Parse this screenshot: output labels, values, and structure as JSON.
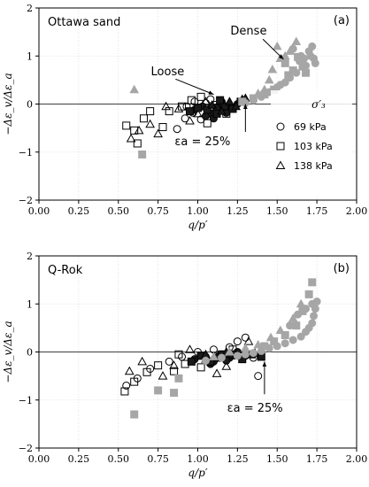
{
  "chart_data": [
    {
      "type": "scatter",
      "panel_tag": "(a)",
      "material": "Ottawa sand",
      "xlabel": "q/p′",
      "ylabel": "−Δε_v/Δε_a",
      "xlim": [
        0,
        2
      ],
      "ylim": [
        -2,
        2
      ],
      "xticks": [
        "0.00",
        "0.25",
        "0.50",
        "0.75",
        "1.00",
        "1.25",
        "1.50",
        "1.75",
        "2.00"
      ],
      "yticks": [
        "−2",
        "−1",
        "0",
        "1",
        "2"
      ],
      "grid": true,
      "legend": {
        "placement": "right",
        "title": "σ′₃",
        "entries": [
          {
            "marker": "circle",
            "label": "69 kPa"
          },
          {
            "marker": "square",
            "label": "103 kPa"
          },
          {
            "marker": "triangle",
            "label": "138 kPa"
          }
        ]
      },
      "annotations": [
        {
          "text": "Dense",
          "points_to": [
            1.54,
            0.93
          ]
        },
        {
          "text": "Loose",
          "points_to": [
            1.1,
            0.2
          ]
        },
        {
          "text": "εa = 25%",
          "points_to": [
            1.3,
            0.0
          ]
        }
      ],
      "series": [
        {
          "marker": "circle",
          "fill": "hollow",
          "points": [
            [
              0.93,
              -0.05
            ],
            [
              0.97,
              -0.18
            ],
            [
              1.02,
              -0.32
            ],
            [
              1.05,
              0.02
            ],
            [
              1.1,
              -0.25
            ],
            [
              0.98,
              0.05
            ],
            [
              1.13,
              -0.1
            ],
            [
              0.87,
              -0.52
            ],
            [
              0.92,
              -0.3
            ],
            [
              1.08,
              0.1
            ],
            [
              1.15,
              0.05
            ]
          ]
        },
        {
          "marker": "square",
          "fill": "hollow",
          "points": [
            [
              0.55,
              -0.45
            ],
            [
              0.6,
              -0.55
            ],
            [
              0.62,
              -0.82
            ],
            [
              0.66,
              -0.3
            ],
            [
              0.7,
              -0.15
            ],
            [
              0.78,
              -0.48
            ],
            [
              0.82,
              -0.15
            ],
            [
              0.9,
              -0.05
            ],
            [
              1.02,
              0.15
            ],
            [
              1.06,
              -0.4
            ],
            [
              1.12,
              -0.02
            ],
            [
              1.18,
              -0.2
            ],
            [
              0.96,
              0.08
            ]
          ]
        },
        {
          "marker": "triangle",
          "fill": "hollow",
          "points": [
            [
              0.58,
              -0.72
            ],
            [
              0.63,
              -0.55
            ],
            [
              0.7,
              -0.42
            ],
            [
              0.75,
              -0.62
            ],
            [
              0.8,
              -0.05
            ],
            [
              0.88,
              -0.1
            ],
            [
              0.95,
              -0.35
            ],
            [
              1.0,
              -0.2
            ],
            [
              1.05,
              0.05
            ],
            [
              1.1,
              -0.15
            ]
          ]
        },
        {
          "marker": "circle",
          "fill": "dark",
          "points": [
            [
              0.98,
              -0.12
            ],
            [
              1.03,
              -0.05
            ],
            [
              1.08,
              -0.2
            ],
            [
              1.12,
              -0.08
            ],
            [
              1.15,
              0.02
            ],
            [
              1.2,
              -0.1
            ],
            [
              1.25,
              0.0
            ],
            [
              1.05,
              -0.25
            ],
            [
              1.1,
              -0.3
            ],
            [
              1.18,
              -0.18
            ]
          ]
        },
        {
          "marker": "square",
          "fill": "dark",
          "points": [
            [
              1.0,
              -0.08
            ],
            [
              1.06,
              -0.12
            ],
            [
              1.12,
              -0.2
            ],
            [
              1.17,
              -0.05
            ],
            [
              1.22,
              -0.1
            ],
            [
              1.27,
              0.05
            ],
            [
              0.95,
              -0.15
            ],
            [
              1.14,
              0.08
            ]
          ]
        },
        {
          "marker": "triangle",
          "fill": "dark",
          "points": [
            [
              1.15,
              -0.15
            ],
            [
              1.2,
              0.05
            ],
            [
              1.24,
              -0.05
            ],
            [
              1.28,
              0.1
            ],
            [
              1.3,
              0.12
            ],
            [
              1.09,
              -0.02
            ]
          ]
        },
        {
          "marker": "circle",
          "fill": "gray",
          "points": [
            [
              1.6,
              1.15
            ],
            [
              1.65,
              1.0
            ],
            [
              1.7,
              1.1
            ],
            [
              1.72,
              1.2
            ],
            [
              1.73,
              0.95
            ],
            [
              1.68,
              0.8
            ],
            [
              1.62,
              0.65
            ],
            [
              1.55,
              0.45
            ],
            [
              1.5,
              0.35
            ],
            [
              1.45,
              0.25
            ],
            [
              1.4,
              0.15
            ],
            [
              1.35,
              0.08
            ],
            [
              1.3,
              0.02
            ],
            [
              1.67,
              0.95
            ],
            [
              1.74,
              0.85
            ],
            [
              1.58,
              0.55
            ],
            [
              1.52,
              0.4
            ],
            [
              1.64,
              0.9
            ],
            [
              1.71,
              1.0
            ]
          ]
        },
        {
          "marker": "square",
          "fill": "gray",
          "points": [
            [
              1.55,
              0.85
            ],
            [
              1.6,
              0.7
            ],
            [
              1.63,
              0.98
            ],
            [
              1.68,
              0.65
            ],
            [
              1.48,
              0.3
            ],
            [
              1.42,
              0.2
            ],
            [
              1.35,
              0.12
            ],
            [
              1.28,
              0.05
            ],
            [
              0.65,
              -1.05
            ],
            [
              1.66,
              0.78
            ],
            [
              1.57,
              0.6
            ]
          ]
        },
        {
          "marker": "triangle",
          "fill": "gray",
          "points": [
            [
              1.5,
              1.2
            ],
            [
              1.52,
              0.95
            ],
            [
              1.58,
              1.1
            ],
            [
              1.62,
              1.3
            ],
            [
              1.65,
              0.9
            ],
            [
              1.45,
              0.5
            ],
            [
              1.42,
              0.3
            ],
            [
              1.38,
              0.22
            ],
            [
              0.6,
              0.3
            ],
            [
              1.47,
              0.72
            ],
            [
              1.55,
              1.0
            ]
          ]
        }
      ]
    },
    {
      "type": "scatter",
      "panel_tag": "(b)",
      "material": "Q-Rok",
      "xlabel": "q/p′",
      "ylabel": "−Δε_v/Δε_a",
      "xlim": [
        0,
        2
      ],
      "ylim": [
        -2,
        2
      ],
      "xticks": [
        "0.00",
        "0.25",
        "0.50",
        "0.75",
        "1.00",
        "1.25",
        "1.50",
        "1.75",
        "2.00"
      ],
      "yticks": [
        "−2",
        "−1",
        "0",
        "1",
        "2"
      ],
      "grid": true,
      "annotations": [
        {
          "text": "εa = 25%",
          "points_to": [
            1.42,
            -0.2
          ]
        }
      ],
      "series": [
        {
          "marker": "circle",
          "fill": "hollow",
          "points": [
            [
              0.55,
              -0.7
            ],
            [
              0.62,
              -0.55
            ],
            [
              0.7,
              -0.35
            ],
            [
              0.82,
              -0.2
            ],
            [
              0.9,
              -0.1
            ],
            [
              1.0,
              0.0
            ],
            [
              1.1,
              0.05
            ],
            [
              1.2,
              0.1
            ],
            [
              1.25,
              0.22
            ],
            [
              1.3,
              0.3
            ],
            [
              1.38,
              -0.5
            ],
            [
              1.35,
              -0.12
            ]
          ]
        },
        {
          "marker": "square",
          "fill": "hollow",
          "points": [
            [
              0.54,
              -0.82
            ],
            [
              0.6,
              -0.62
            ],
            [
              0.68,
              -0.42
            ],
            [
              0.75,
              -0.28
            ],
            [
              0.85,
              -0.4
            ],
            [
              0.92,
              -0.25
            ],
            [
              1.02,
              -0.32
            ],
            [
              1.15,
              -0.05
            ],
            [
              1.22,
              0.05
            ],
            [
              0.88,
              -0.05
            ]
          ]
        },
        {
          "marker": "triangle",
          "fill": "hollow",
          "points": [
            [
              0.57,
              -0.4
            ],
            [
              0.65,
              -0.2
            ],
            [
              0.78,
              -0.5
            ],
            [
              0.85,
              -0.28
            ],
            [
              0.95,
              0.05
            ],
            [
              1.05,
              -0.15
            ],
            [
              1.12,
              -0.45
            ],
            [
              1.18,
              -0.3
            ],
            [
              1.27,
              -0.05
            ],
            [
              1.32,
              0.22
            ]
          ]
        },
        {
          "marker": "circle",
          "fill": "dark",
          "points": [
            [
              0.98,
              -0.15
            ],
            [
              1.05,
              -0.1
            ],
            [
              1.1,
              -0.2
            ],
            [
              1.15,
              -0.05
            ],
            [
              1.2,
              -0.12
            ],
            [
              1.25,
              0.0
            ],
            [
              1.3,
              -0.08
            ],
            [
              1.08,
              -0.25
            ],
            [
              1.18,
              -0.18
            ]
          ]
        },
        {
          "marker": "square",
          "fill": "dark",
          "points": [
            [
              1.02,
              -0.08
            ],
            [
              1.08,
              -0.2
            ],
            [
              1.13,
              -0.12
            ],
            [
              1.22,
              -0.05
            ],
            [
              1.28,
              -0.15
            ],
            [
              1.34,
              -0.05
            ],
            [
              1.4,
              -0.1
            ],
            [
              0.96,
              -0.2
            ]
          ]
        },
        {
          "marker": "triangle",
          "fill": "dark",
          "points": [
            [
              1.12,
              -0.1
            ],
            [
              1.18,
              0.0
            ],
            [
              1.24,
              -0.08
            ],
            [
              1.3,
              0.05
            ],
            [
              1.36,
              -0.02
            ],
            [
              1.05,
              -0.05
            ]
          ]
        },
        {
          "marker": "circle",
          "fill": "gray",
          "points": [
            [
              1.75,
              1.05
            ],
            [
              1.74,
              0.9
            ],
            [
              1.73,
              0.75
            ],
            [
              1.72,
              0.6
            ],
            [
              1.7,
              0.5
            ],
            [
              1.68,
              0.42
            ],
            [
              1.65,
              0.32
            ],
            [
              1.6,
              0.25
            ],
            [
              1.55,
              0.18
            ],
            [
              1.5,
              0.12
            ],
            [
              1.45,
              0.08
            ],
            [
              1.4,
              0.02
            ],
            [
              1.35,
              -0.02
            ],
            [
              1.3,
              -0.05
            ],
            [
              1.25,
              -0.08
            ],
            [
              1.15,
              -0.12
            ],
            [
              1.05,
              -0.18
            ],
            [
              1.63,
              0.78
            ],
            [
              1.68,
              0.9
            ],
            [
              1.72,
              1.0
            ],
            [
              1.58,
              0.55
            ]
          ]
        },
        {
          "marker": "square",
          "fill": "gray",
          "points": [
            [
              1.72,
              1.45
            ],
            [
              1.7,
              1.2
            ],
            [
              1.66,
              0.85
            ],
            [
              1.62,
              0.55
            ],
            [
              1.55,
              0.35
            ],
            [
              1.48,
              0.22
            ],
            [
              1.42,
              0.12
            ],
            [
              0.6,
              -1.3
            ],
            [
              0.75,
              -0.8
            ],
            [
              0.88,
              -0.55
            ],
            [
              0.85,
              -0.85
            ]
          ]
        },
        {
          "marker": "triangle",
          "fill": "gray",
          "points": [
            [
              1.65,
              1.0
            ],
            [
              1.6,
              0.7
            ],
            [
              1.52,
              0.45
            ],
            [
              1.46,
              0.3
            ],
            [
              1.38,
              0.15
            ],
            [
              1.3,
              0.08
            ],
            [
              1.2,
              0.0
            ],
            [
              1.1,
              -0.1
            ]
          ]
        }
      ]
    }
  ]
}
